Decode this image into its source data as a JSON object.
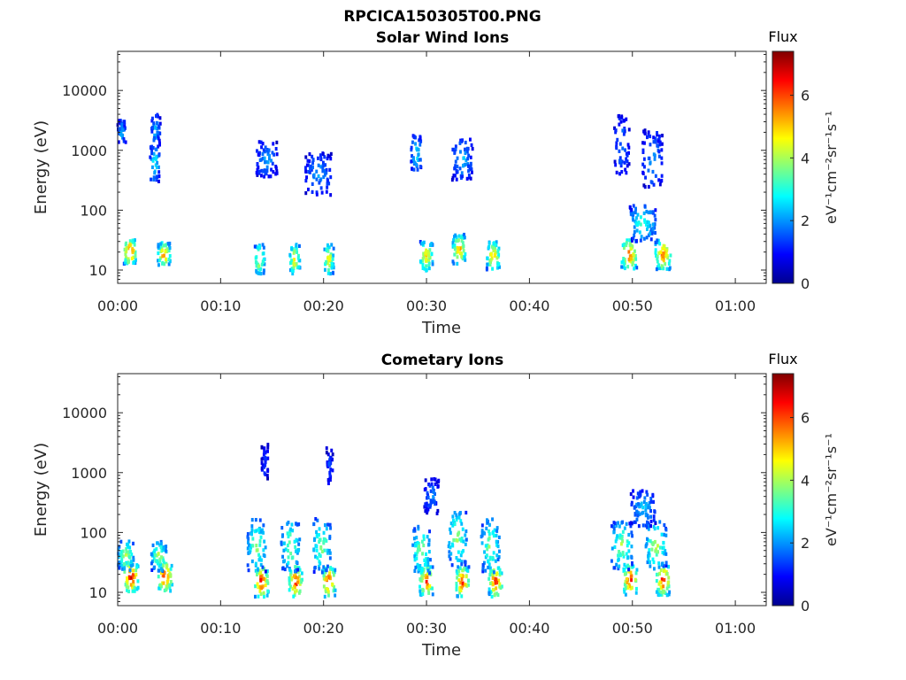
{
  "figure_title": "RPCICA150305T00.PNG",
  "colormap": [
    "#00008f",
    "#0000ff",
    "#0080ff",
    "#00ffff",
    "#80ff80",
    "#ffff00",
    "#ff8000",
    "#ff0000",
    "#800000"
  ],
  "chart_data": [
    {
      "type": "heatmap",
      "title": "Solar Wind Ions",
      "xlabel": "Time",
      "ylabel": "Energy (eV)",
      "yscale": "log",
      "xlim": [
        "00:00",
        "01:03"
      ],
      "ylim": [
        6,
        45000
      ],
      "x_ticks": [
        "00:00",
        "00:10",
        "00:20",
        "00:30",
        "00:40",
        "00:50",
        "01:00"
      ],
      "y_ticks": [
        "10",
        "100",
        "1000",
        "10000"
      ],
      "colorbar": {
        "title": "Flux",
        "label": "eV⁻¹cm⁻²sr⁻¹s⁻¹",
        "range": [
          0,
          7.4
        ],
        "ticks": [
          "0",
          "2",
          "4",
          "6"
        ]
      },
      "clusters": [
        {
          "time_min": 1.2,
          "energy_eV": 20,
          "width_min": 1.2,
          "spread_dec": 0.2,
          "flux": 6.8
        },
        {
          "time_min": 4.5,
          "energy_eV": 18,
          "width_min": 1.2,
          "spread_dec": 0.2,
          "flux": 5.8
        },
        {
          "time_min": 0.4,
          "energy_eV": 2000,
          "width_min": 0.8,
          "spread_dec": 0.2,
          "flux": 2.4
        },
        {
          "time_min": 3.7,
          "energy_eV": 2200,
          "width_min": 0.9,
          "spread_dec": 0.25,
          "flux": 2.5
        },
        {
          "time_min": 3.6,
          "energy_eV": 600,
          "width_min": 0.9,
          "spread_dec": 0.3,
          "flux": 3.2
        },
        {
          "time_min": 13.8,
          "energy_eV": 15,
          "width_min": 1.0,
          "spread_dec": 0.25,
          "flux": 5.0
        },
        {
          "time_min": 17.2,
          "energy_eV": 15,
          "width_min": 1.0,
          "spread_dec": 0.25,
          "flux": 5.2
        },
        {
          "time_min": 20.5,
          "energy_eV": 15,
          "width_min": 1.0,
          "spread_dec": 0.25,
          "flux": 5.0
        },
        {
          "time_min": 14.5,
          "energy_eV": 700,
          "width_min": 2.0,
          "spread_dec": 0.3,
          "flux": 2.2
        },
        {
          "time_min": 19.5,
          "energy_eV": 400,
          "width_min": 2.5,
          "spread_dec": 0.35,
          "flux": 2.2
        },
        {
          "time_min": 30.0,
          "energy_eV": 17,
          "width_min": 1.3,
          "spread_dec": 0.25,
          "flux": 5.3
        },
        {
          "time_min": 33.2,
          "energy_eV": 22,
          "width_min": 1.3,
          "spread_dec": 0.25,
          "flux": 5.5
        },
        {
          "time_min": 36.5,
          "energy_eV": 17,
          "width_min": 1.3,
          "spread_dec": 0.25,
          "flux": 5.4
        },
        {
          "time_min": 29.0,
          "energy_eV": 900,
          "width_min": 1.0,
          "spread_dec": 0.3,
          "flux": 3.0
        },
        {
          "time_min": 33.5,
          "energy_eV": 700,
          "width_min": 2.0,
          "spread_dec": 0.35,
          "flux": 2.4
        },
        {
          "time_min": 49.7,
          "energy_eV": 18,
          "width_min": 1.5,
          "spread_dec": 0.25,
          "flux": 6.2
        },
        {
          "time_min": 53.0,
          "energy_eV": 18,
          "width_min": 1.5,
          "spread_dec": 0.25,
          "flux": 6.0
        },
        {
          "time_min": 51.0,
          "energy_eV": 60,
          "width_min": 2.5,
          "spread_dec": 0.3,
          "flux": 3.4
        },
        {
          "time_min": 49.0,
          "energy_eV": 1200,
          "width_min": 1.5,
          "spread_dec": 0.5,
          "flux": 2.0
        },
        {
          "time_min": 52.0,
          "energy_eV": 700,
          "width_min": 2.0,
          "spread_dec": 0.5,
          "flux": 2.1
        }
      ]
    },
    {
      "type": "heatmap",
      "title": "Cometary Ions",
      "xlabel": "Time",
      "ylabel": "Energy (eV)",
      "yscale": "log",
      "xlim": [
        "00:00",
        "01:03"
      ],
      "ylim": [
        6,
        45000
      ],
      "x_ticks": [
        "00:00",
        "00:10",
        "00:20",
        "00:30",
        "00:40",
        "00:50",
        "01:00"
      ],
      "y_ticks": [
        "10",
        "100",
        "1000",
        "10000"
      ],
      "colorbar": {
        "title": "Flux",
        "label": "eV⁻¹cm⁻²sr⁻¹s⁻¹",
        "range": [
          0,
          7.4
        ],
        "ticks": [
          "0",
          "2",
          "4",
          "6"
        ]
      },
      "clusters": [
        {
          "time_min": 1.3,
          "energy_eV": 18,
          "width_min": 1.4,
          "spread_dec": 0.25,
          "flux": 7.0
        },
        {
          "time_min": 4.6,
          "energy_eV": 18,
          "width_min": 1.4,
          "spread_dec": 0.25,
          "flux": 6.8
        },
        {
          "time_min": 0.8,
          "energy_eV": 40,
          "width_min": 1.5,
          "spread_dec": 0.25,
          "flux": 4.5
        },
        {
          "time_min": 4.0,
          "energy_eV": 40,
          "width_min": 1.5,
          "spread_dec": 0.25,
          "flux": 4.3
        },
        {
          "time_min": 14.0,
          "energy_eV": 15,
          "width_min": 1.3,
          "spread_dec": 0.25,
          "flux": 6.8
        },
        {
          "time_min": 17.3,
          "energy_eV": 15,
          "width_min": 1.3,
          "spread_dec": 0.25,
          "flux": 6.8
        },
        {
          "time_min": 20.5,
          "energy_eV": 15,
          "width_min": 1.3,
          "spread_dec": 0.25,
          "flux": 6.6
        },
        {
          "time_min": 13.5,
          "energy_eV": 60,
          "width_min": 1.8,
          "spread_dec": 0.45,
          "flux": 4.0
        },
        {
          "time_min": 16.8,
          "energy_eV": 60,
          "width_min": 1.8,
          "spread_dec": 0.45,
          "flux": 4.0
        },
        {
          "time_min": 19.8,
          "energy_eV": 60,
          "width_min": 1.8,
          "spread_dec": 0.45,
          "flux": 4.0
        },
        {
          "time_min": 14.3,
          "energy_eV": 1500,
          "width_min": 0.6,
          "spread_dec": 0.3,
          "flux": 1.5
        },
        {
          "time_min": 20.6,
          "energy_eV": 1300,
          "width_min": 0.6,
          "spread_dec": 0.3,
          "flux": 1.6
        },
        {
          "time_min": 30.0,
          "energy_eV": 15,
          "width_min": 1.3,
          "spread_dec": 0.25,
          "flux": 6.5
        },
        {
          "time_min": 33.5,
          "energy_eV": 15,
          "width_min": 1.3,
          "spread_dec": 0.25,
          "flux": 6.6
        },
        {
          "time_min": 36.7,
          "energy_eV": 15,
          "width_min": 1.3,
          "spread_dec": 0.25,
          "flux": 6.6
        },
        {
          "time_min": 29.5,
          "energy_eV": 50,
          "width_min": 1.8,
          "spread_dec": 0.4,
          "flux": 4.2
        },
        {
          "time_min": 33.0,
          "energy_eV": 80,
          "width_min": 1.8,
          "spread_dec": 0.45,
          "flux": 4.2
        },
        {
          "time_min": 36.2,
          "energy_eV": 60,
          "width_min": 1.8,
          "spread_dec": 0.45,
          "flux": 4.0
        },
        {
          "time_min": 30.5,
          "energy_eV": 400,
          "width_min": 1.5,
          "spread_dec": 0.3,
          "flux": 2.0
        },
        {
          "time_min": 49.8,
          "energy_eV": 16,
          "width_min": 1.3,
          "spread_dec": 0.25,
          "flux": 6.8
        },
        {
          "time_min": 53.0,
          "energy_eV": 16,
          "width_min": 1.3,
          "spread_dec": 0.25,
          "flux": 6.8
        },
        {
          "time_min": 49.0,
          "energy_eV": 60,
          "width_min": 2.0,
          "spread_dec": 0.4,
          "flux": 4.2
        },
        {
          "time_min": 52.3,
          "energy_eV": 60,
          "width_min": 2.0,
          "spread_dec": 0.4,
          "flux": 4.4
        },
        {
          "time_min": 51.0,
          "energy_eV": 250,
          "width_min": 2.5,
          "spread_dec": 0.3,
          "flux": 2.6
        }
      ]
    }
  ]
}
